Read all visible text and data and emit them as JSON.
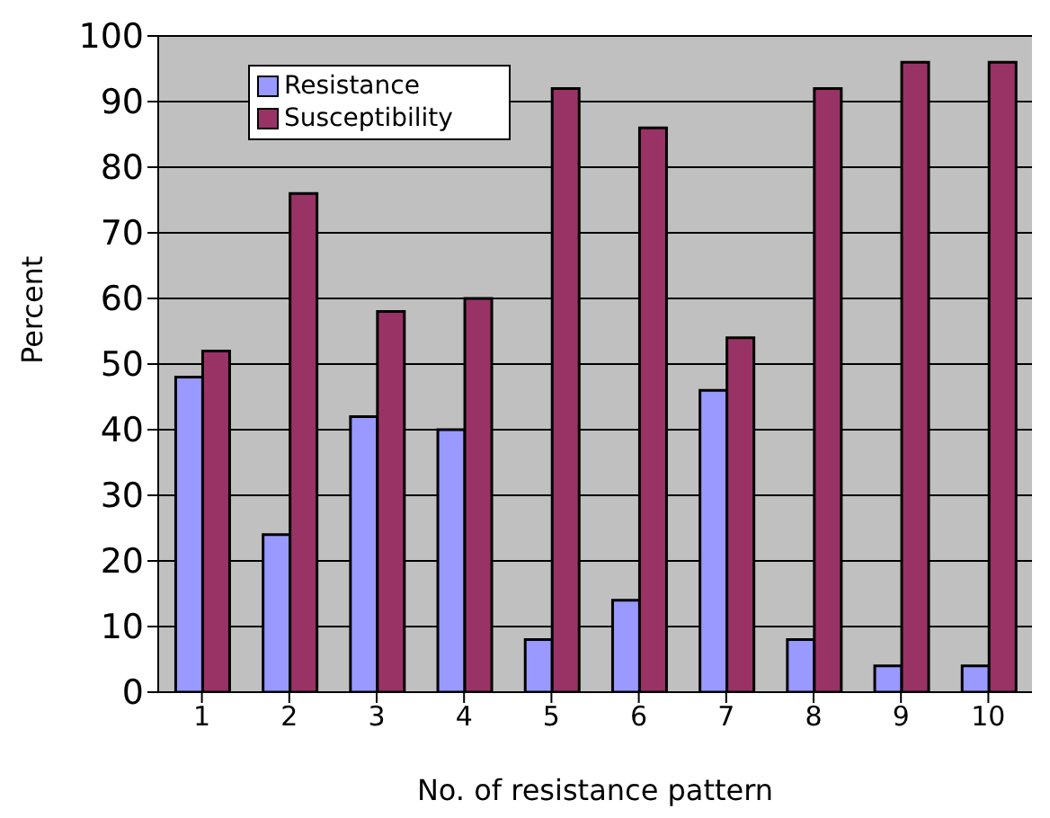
{
  "chart_data": {
    "type": "bar",
    "xlabel": "No. of resistance pattern",
    "ylabel": "Percent",
    "categories": [
      "1",
      "2",
      "3",
      "4",
      "5",
      "6",
      "7",
      "8",
      "9",
      "10"
    ],
    "series": [
      {
        "name": "Resistance",
        "color": "#9999ff",
        "values": [
          48,
          24,
          42,
          40,
          8,
          14,
          46,
          8,
          4,
          4
        ]
      },
      {
        "name": "Susceptibility",
        "color": "#993366",
        "values": [
          52,
          76,
          58,
          60,
          92,
          86,
          54,
          92,
          96,
          96
        ]
      }
    ],
    "ylim": [
      0,
      100
    ],
    "yticks": [
      0,
      10,
      20,
      30,
      40,
      50,
      60,
      70,
      80,
      90,
      100
    ],
    "grid": "y",
    "legend": "top left"
  }
}
